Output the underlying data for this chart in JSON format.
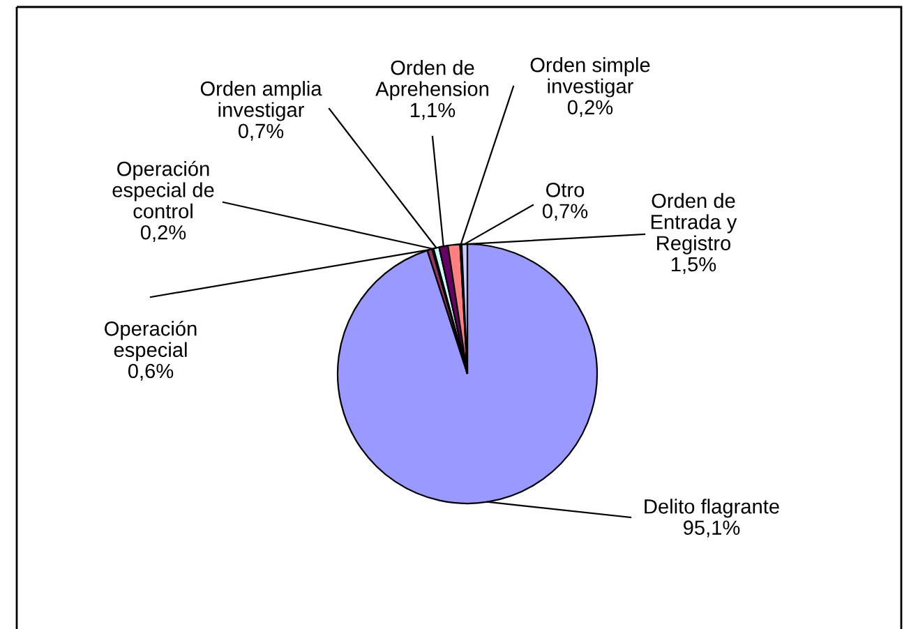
{
  "chart_data": {
    "type": "pie",
    "categories": [
      "Delito flagrante",
      "Operación especial",
      "Operación especial de control",
      "Orden amplia investigar",
      "Orden de Aprehension",
      "Orden de Entrada y Registro",
      "Orden simple investigar",
      "Otro"
    ],
    "values": [
      95.1,
      0.6,
      0.2,
      0.7,
      1.1,
      1.5,
      0.2,
      0.7
    ],
    "value_labels": [
      "95,1%",
      "0,6%",
      "0,2%",
      "0,7%",
      "1,1%",
      "1,5%",
      "0,2%",
      "0,7%"
    ],
    "colors": [
      "#9999ff",
      "#993366",
      "#ffffcc",
      "#ccffff",
      "#660066",
      "#ff8080",
      "#0066cc",
      "#ccccff"
    ],
    "legend": false
  }
}
